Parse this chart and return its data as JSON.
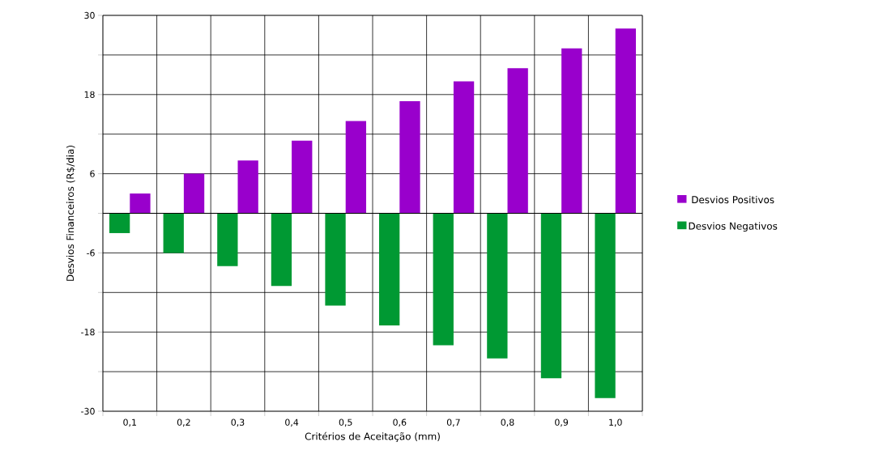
{
  "chart_data": {
    "type": "bar",
    "xlabel": "Critérios de Aceitação (mm)",
    "ylabel": "Desvios Financeiros (R$/dia)",
    "categories": [
      "0,1",
      "0,2",
      "0,3",
      "0,4",
      "0,5",
      "0,6",
      "0,7",
      "0,8",
      "0,9",
      "1,0"
    ],
    "series": [
      {
        "name": "Desvios Positivos",
        "color": "#9900cc",
        "values": [
          3,
          6,
          8,
          11,
          14,
          17,
          20,
          22,
          25,
          28
        ]
      },
      {
        "name": "Desvios Negativos",
        "color": "#009933",
        "values": [
          -3,
          -6,
          -8,
          -11,
          -14,
          -17,
          -20,
          -22,
          -25,
          -28
        ]
      }
    ],
    "ylim": [
      -30,
      30
    ],
    "yticks": [
      -30,
      {
        "value": -24,
        "label": null
      },
      -18,
      {
        "value": -12,
        "label": null
      },
      -6,
      {
        "value": 0,
        "label": null
      },
      6,
      {
        "value": 12,
        "label": null
      },
      18,
      {
        "value": 24,
        "label": null
      },
      30
    ],
    "grid": true,
    "legend": "right"
  }
}
